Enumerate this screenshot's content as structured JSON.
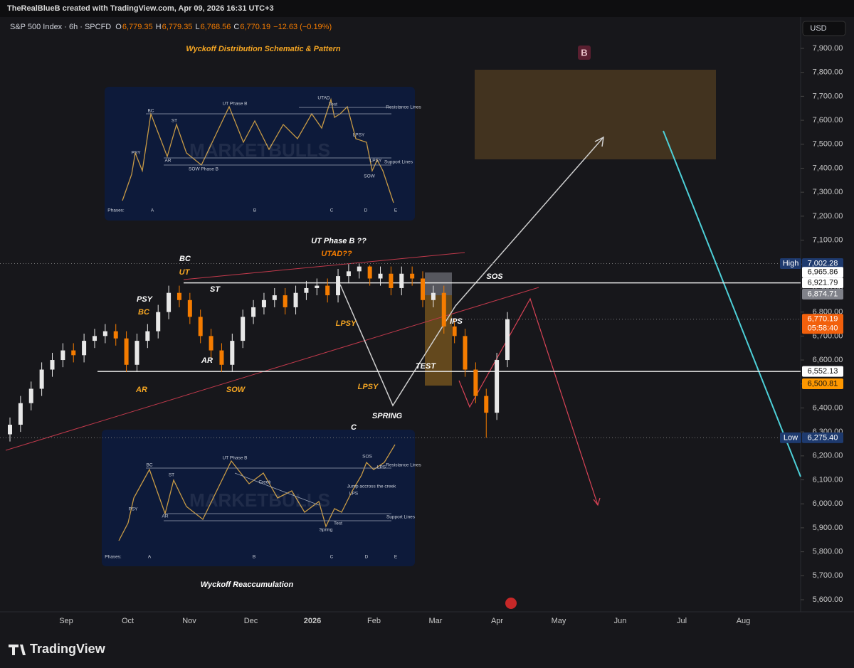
{
  "chart_data": {
    "type": "candlestick",
    "header": {
      "credit": "TheRealBlueB created with TradingView.com, Apr 09, 2026 16:31 UTC+3",
      "symbol": "S&P 500 Index · 6h · SPCFD",
      "ohlc": [
        {
          "key": "O",
          "value": "6,779.35"
        },
        {
          "key": "H",
          "value": "6,779.35"
        },
        {
          "key": "L",
          "value": "6,768.56"
        },
        {
          "key": "C",
          "value": "6,770.19"
        }
      ],
      "change": "−12.63 (−0.19%)",
      "currency": "USD"
    },
    "up_color": "#e8e8e8",
    "down_color": "#f57c00",
    "candles": {
      "open": [
        6290,
        6330,
        6420,
        6480,
        6560,
        6600,
        6640,
        6620,
        6680,
        6700,
        6720,
        6690,
        6580,
        6680,
        6720,
        6800,
        6880,
        6850,
        6780,
        6700,
        6640,
        6580,
        6680,
        6780,
        6820,
        6850,
        6870,
        6820,
        6880,
        6900,
        6910,
        6870,
        6950,
        6970,
        6990,
        6940,
        6960,
        6900,
        6960,
        6940,
        6850,
        6880,
        6740,
        6700,
        6560,
        6450,
        6380,
        6600
      ],
      "high": [
        6360,
        6450,
        6510,
        6590,
        6630,
        6670,
        6670,
        6710,
        6730,
        6750,
        6750,
        6720,
        6710,
        6750,
        6830,
        6910,
        6910,
        6880,
        6810,
        6730,
        6670,
        6710,
        6810,
        6850,
        6880,
        6900,
        6900,
        6910,
        6930,
        6940,
        6940,
        6980,
        7000,
        7002.28,
        6995,
        6990,
        6990,
        6990,
        6990,
        6970,
        6910,
        6910,
        6770,
        6730,
        6590,
        6480,
        6630,
        6800
      ],
      "low": [
        6260,
        6300,
        6390,
        6450,
        6530,
        6570,
        6590,
        6590,
        6650,
        6670,
        6660,
        6550,
        6550,
        6650,
        6690,
        6770,
        6820,
        6750,
        6670,
        6610,
        6550,
        6550,
        6650,
        6750,
        6790,
        6820,
        6790,
        6790,
        6850,
        6870,
        6840,
        6840,
        6920,
        6940,
        6910,
        6910,
        6870,
        6870,
        6910,
        6820,
        6820,
        6710,
        6670,
        6530,
        6420,
        6275.4,
        6350,
        6570
      ],
      "close": [
        6330,
        6420,
        6480,
        6560,
        6600,
        6640,
        6620,
        6680,
        6700,
        6720,
        6690,
        6580,
        6680,
        6720,
        6800,
        6880,
        6850,
        6780,
        6700,
        6640,
        6580,
        6680,
        6780,
        6820,
        6850,
        6870,
        6820,
        6880,
        6900,
        6910,
        6870,
        6950,
        6970,
        6990,
        6940,
        6960,
        6900,
        6960,
        6940,
        6850,
        6880,
        6740,
        6700,
        6560,
        6450,
        6380,
        6600,
        6770
      ]
    },
    "ylim": [
      5600,
      7900
    ],
    "yticks": [
      {
        "value": 5600,
        "label": "5,600.00"
      },
      {
        "value": 5700,
        "label": "5,700.00"
      },
      {
        "value": 5800,
        "label": "5,800.00"
      },
      {
        "value": 5900,
        "label": "5,900.00"
      },
      {
        "value": 6000,
        "label": "6,000.00"
      },
      {
        "value": 6100,
        "label": "6,100.00"
      },
      {
        "value": 6200,
        "label": "6,200.00"
      },
      {
        "value": 6300,
        "label": "6,300.00"
      },
      {
        "value": 6400,
        "label": "6,400.00"
      },
      {
        "value": 6500,
        "label": "6,500.00"
      },
      {
        "value": 6600,
        "label": "6,600.00"
      },
      {
        "value": 6700,
        "label": "6,700.00"
      },
      {
        "value": 6800,
        "label": "6,800.00"
      },
      {
        "value": 6900,
        "label": "6,900.00"
      },
      {
        "value": 7000,
        "label": "7,000.00"
      },
      {
        "value": 7100,
        "label": "7,100.00"
      },
      {
        "value": 7200,
        "label": "7,200.00"
      },
      {
        "value": 7300,
        "label": "7,300.00"
      },
      {
        "value": 7400,
        "label": "7,400.00"
      },
      {
        "value": 7500,
        "label": "7,500.00"
      },
      {
        "value": 7600,
        "label": "7,600.00"
      },
      {
        "value": 7700,
        "label": "7,700.00"
      },
      {
        "value": 7800,
        "label": "7,800.00"
      },
      {
        "value": 7900,
        "label": "7,900.00"
      }
    ],
    "time_labels": [
      "Sep",
      "Oct",
      "Nov",
      "Dec",
      "2026",
      "Feb",
      "Mar",
      "Apr",
      "May",
      "Jun",
      "Jul",
      "Aug"
    ],
    "price_labels": [
      {
        "tag": "High",
        "value": 7002.28,
        "label": "7,002.28"
      },
      {
        "value": 6965.86,
        "label": "6,965.86"
      },
      {
        "value": 6921.79,
        "label": "6,921.79"
      },
      {
        "value": 6874.71,
        "label": "6,874.71"
      },
      {
        "value": 6770.19,
        "label": "6,770.19",
        "sub": "05:58:40"
      },
      {
        "value": 6552.13,
        "label": "6,552.13"
      },
      {
        "value": 6500.81,
        "label": "6,500.81"
      },
      {
        "tag": "Low",
        "value": 6275.4,
        "label": "6,275.40"
      }
    ],
    "annotations": [
      "Wyckoff Distribution Schematic & Pattern",
      "UT Phase B ??",
      "UTAD??",
      "BC",
      "UT",
      "PSY",
      "BC",
      "ST",
      "AR",
      "AR",
      "SOW",
      "LPSY",
      "LPSY",
      "SPRING",
      "C",
      "TEST",
      "SOS",
      "IPS",
      "Wyckoff Reaccumulation",
      "B"
    ],
    "insets": [
      {
        "watermark": "MARKETBULLS",
        "labels": [
          "PSY",
          "BC",
          "ST",
          "AR",
          "UT Phase B",
          "SOW Phase B",
          "UTAD",
          "Test",
          "LPSY",
          "LPSY",
          "SOW",
          "Resistance Lines",
          "Support Lines",
          "Phases:",
          "A",
          "B",
          "C",
          "D",
          "E"
        ]
      },
      {
        "watermark": "MARKETBULLS",
        "labels": [
          "PSY",
          "BC",
          "ST",
          "AR",
          "UT Phase B",
          "Creek",
          "Spring",
          "Test",
          "LPS",
          "SOS",
          "LPS",
          "Jump accross the creek",
          "Resistance Lines",
          "Support Lines",
          "Phases:",
          "A",
          "B",
          "C",
          "D",
          "E"
        ]
      }
    ],
    "logo": "TradingView"
  }
}
